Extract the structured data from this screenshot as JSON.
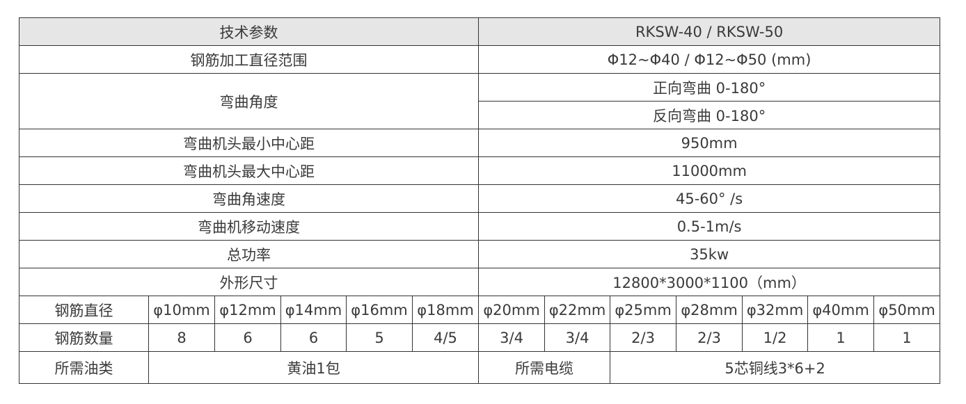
{
  "header": {
    "param": "技术参数",
    "model": "RKSW-40 / RKSW-50"
  },
  "rows": [
    {
      "label": "钢筋加工直径范围",
      "value": "Φ12~Φ40 / Φ12~Φ50 (mm)"
    },
    {
      "label": "弯曲角度",
      "values": [
        "正向弯曲 0-180°",
        "反向弯曲 0-180°"
      ]
    },
    {
      "label": "弯曲机头最小中心距",
      "value": "950mm"
    },
    {
      "label": "弯曲机头最大中心距",
      "value": "11000mm"
    },
    {
      "label": "弯曲角速度",
      "value": "45-60° /s"
    },
    {
      "label": "弯曲机移动速度",
      "value": "0.5-1m/s"
    },
    {
      "label": "总功率",
      "value": "35kw"
    },
    {
      "label": "外形尺寸",
      "value": "12800*3000*1100（mm）"
    }
  ],
  "diameters": {
    "label": "钢筋直径",
    "values": [
      "φ10mm",
      "φ12mm",
      "φ14mm",
      "φ16mm",
      "φ18mm",
      "φ20mm",
      "φ22mm",
      "φ25mm",
      "φ28mm",
      "φ32mm",
      "φ40mm",
      "φ50mm"
    ]
  },
  "quantities": {
    "label": "钢筋数量",
    "values": [
      "8",
      "6",
      "6",
      "5",
      "4/5",
      "3/4",
      "3/4",
      "2/3",
      "2/3",
      "1/2",
      "1",
      "1"
    ]
  },
  "oil": {
    "label": "所需油类",
    "value": "黄油1包"
  },
  "cable": {
    "label": "所需电缆",
    "value": "5芯铜线3*6+2"
  }
}
